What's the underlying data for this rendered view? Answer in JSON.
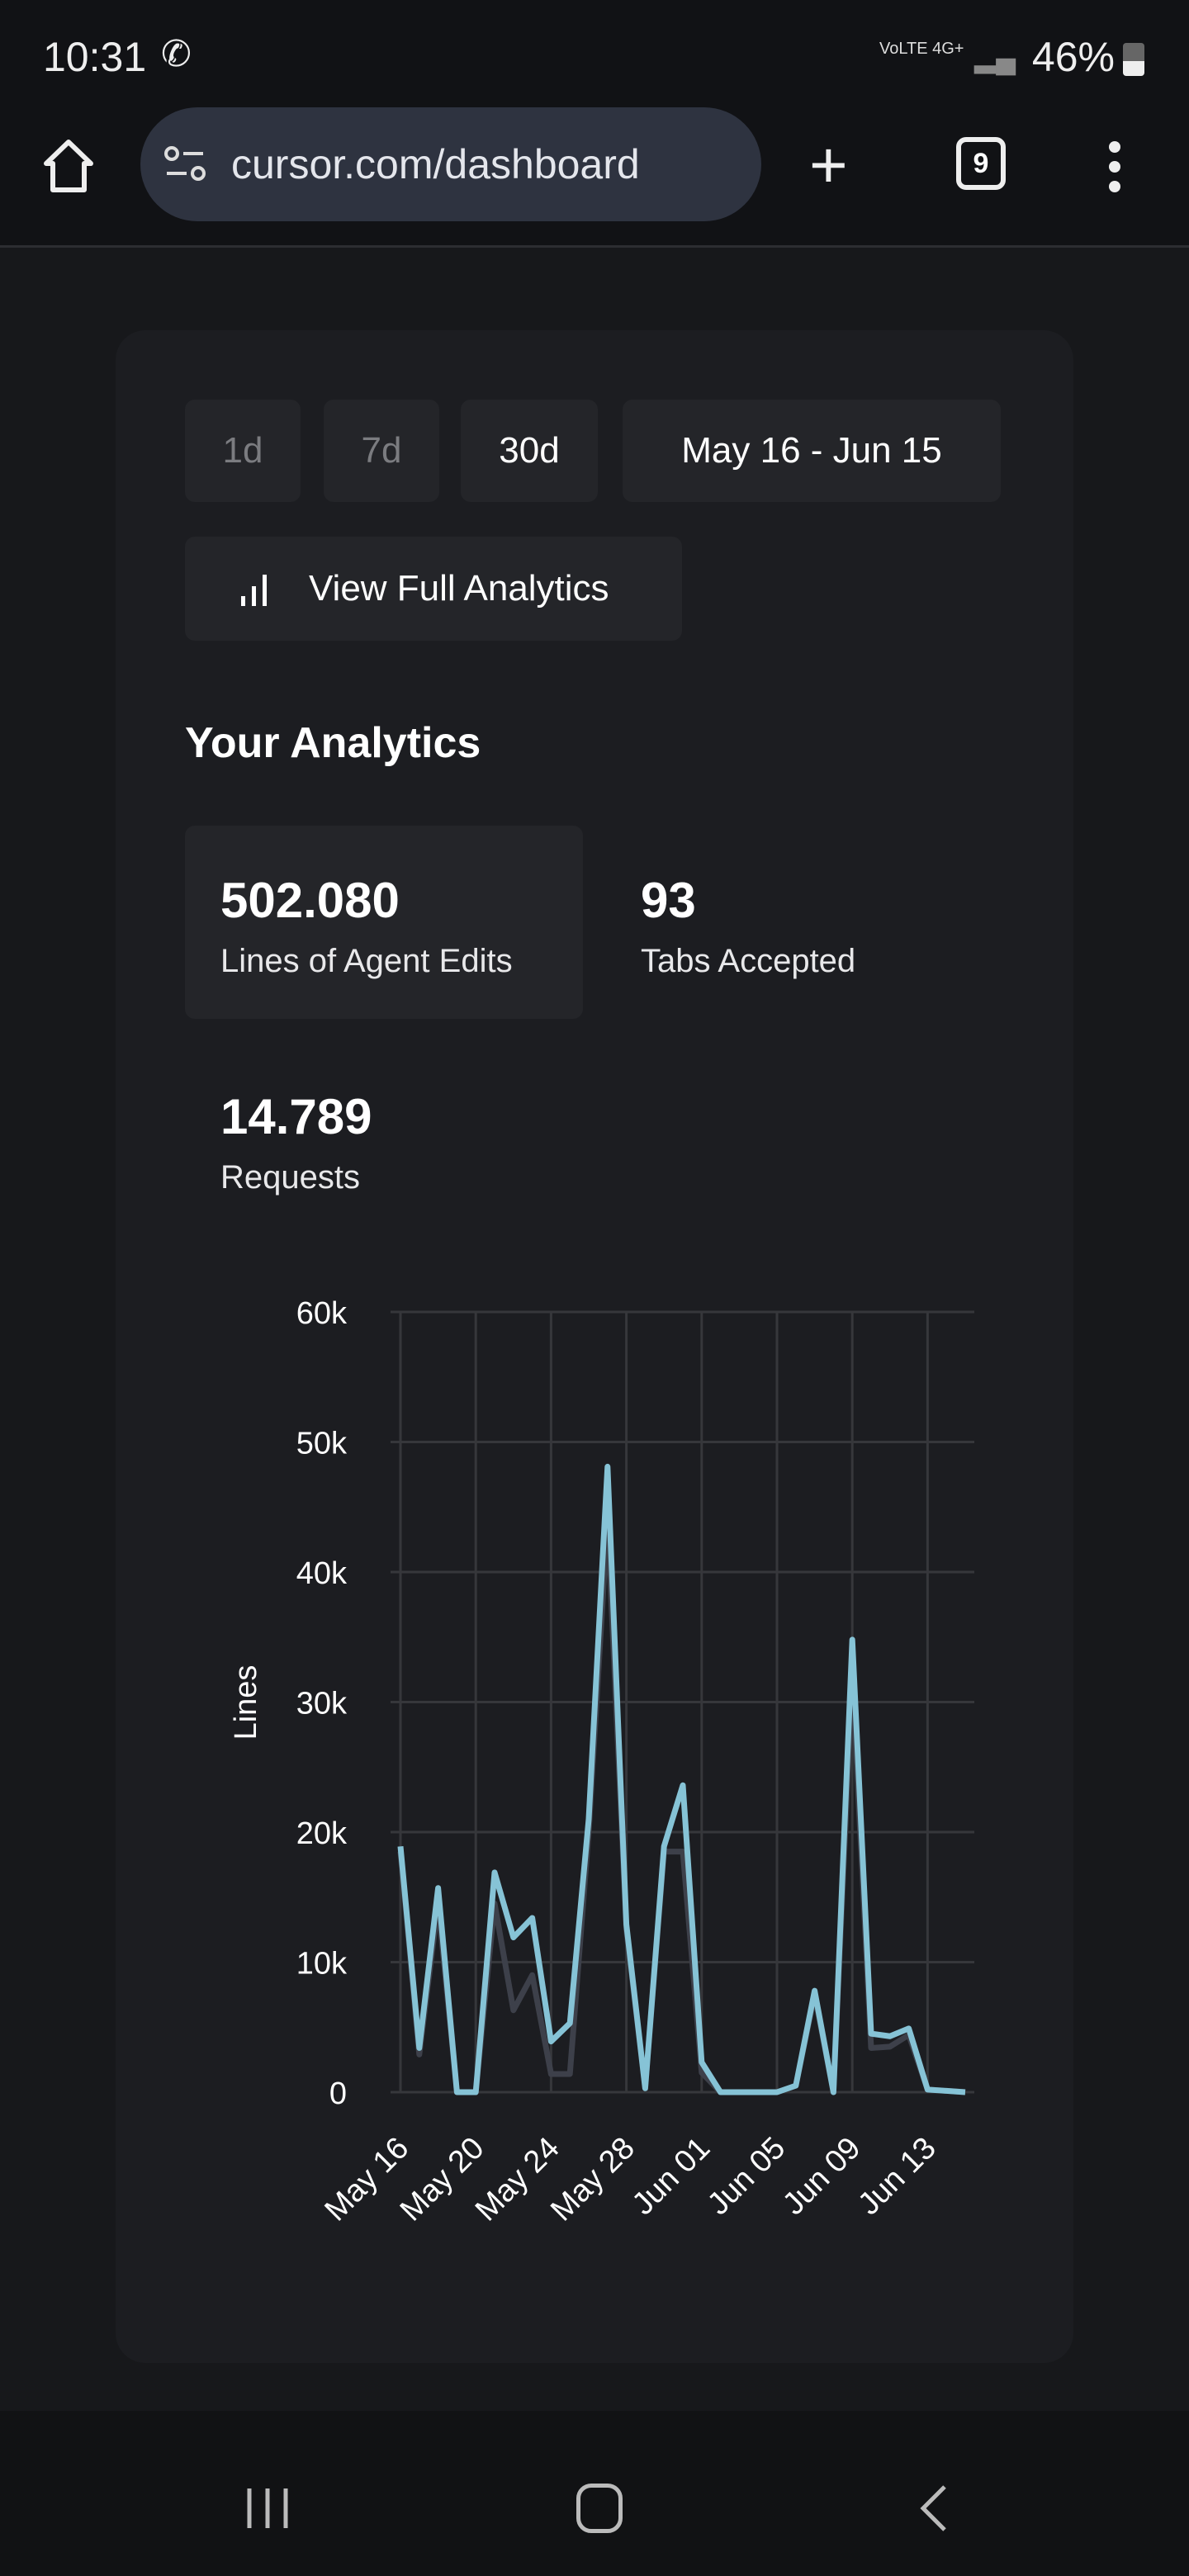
{
  "status_bar": {
    "time": "10:31",
    "network": "VoLTE 4G+",
    "battery": "46%"
  },
  "browser": {
    "url": "cursor.com/dashboard",
    "tab_count": "9"
  },
  "filters": {
    "options": [
      "1d",
      "7d",
      "30d"
    ],
    "selected": "30d",
    "date_range": "May 16 - Jun 15"
  },
  "view_full_analytics": "View Full Analytics",
  "section_title": "Your Analytics",
  "stats": [
    {
      "value": "502.080",
      "label": "Lines of Agent Edits"
    },
    {
      "value": "93",
      "label": "Tabs Accepted"
    },
    {
      "value": "14.789",
      "label": "Requests"
    }
  ],
  "chart_data": {
    "type": "line",
    "ylabel": "Lines",
    "ylim": [
      0,
      60000
    ],
    "yticks": [
      0,
      10000,
      20000,
      30000,
      40000,
      50000,
      60000
    ],
    "ytick_labels": [
      "0",
      "10k",
      "20k",
      "30k",
      "40k",
      "50k",
      "60k"
    ],
    "x": [
      "May 16",
      "May 17",
      "May 18",
      "May 19",
      "May 20",
      "May 21",
      "May 22",
      "May 23",
      "May 24",
      "May 25",
      "May 26",
      "May 27",
      "May 28",
      "May 29",
      "May 30",
      "May 31",
      "Jun 01",
      "Jun 02",
      "Jun 03",
      "Jun 04",
      "Jun 05",
      "Jun 06",
      "Jun 07",
      "Jun 08",
      "Jun 09",
      "Jun 10",
      "Jun 11",
      "Jun 12",
      "Jun 13",
      "Jun 14",
      "Jun 15"
    ],
    "xtick_labels": [
      "May 16",
      "May 20",
      "May 24",
      "May 28",
      "Jun 01",
      "Jun 05",
      "Jun 09",
      "Jun 13"
    ],
    "grid": true,
    "series": [
      {
        "name": "series-2",
        "color": "#3d404a",
        "values": [
          18500,
          2900,
          14500,
          0,
          0,
          14500,
          6300,
          9000,
          1400,
          1400,
          20000,
          44000,
          12500,
          300,
          18500,
          18500,
          1500,
          0,
          0,
          0,
          0,
          500,
          7500,
          0,
          32000,
          3400,
          3500,
          4400,
          200,
          100,
          0
        ]
      },
      {
        "name": "series-1",
        "color": "#86c3d6",
        "values": [
          18900,
          3400,
          15700,
          0,
          0,
          16900,
          11900,
          13400,
          3900,
          5300,
          21000,
          48100,
          12900,
          300,
          18900,
          23600,
          2300,
          0,
          0,
          0,
          0,
          500,
          7800,
          0,
          34800,
          4500,
          4300,
          4900,
          200,
          100,
          0
        ]
      }
    ]
  }
}
